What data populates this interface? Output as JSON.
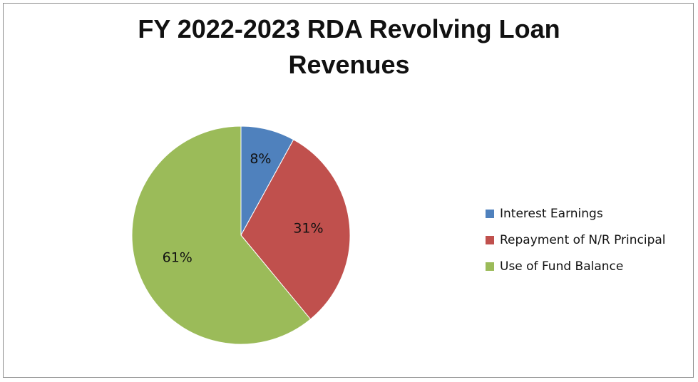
{
  "chart_data": {
    "type": "pie",
    "title_lines": [
      "FY 2022-2023 RDA Revolving Loan",
      "Revenues"
    ],
    "slices": [
      {
        "label": "Interest Earnings",
        "value": 8,
        "display": "8%",
        "color": "#4f81bd"
      },
      {
        "label": "Repayment of N/R Principal",
        "value": 31,
        "display": "31%",
        "color": "#c0504d"
      },
      {
        "label": "Use of Fund Balance",
        "value": 61,
        "display": "61%",
        "color": "#9bbb59"
      }
    ],
    "legend_position": "right"
  }
}
